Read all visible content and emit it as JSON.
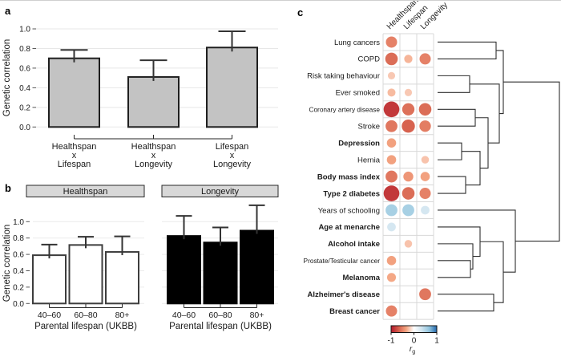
{
  "panel_labels": {
    "a": "a",
    "b": "b",
    "c": "c"
  },
  "chart_data": [
    {
      "id": "a",
      "type": "bar",
      "ylabel": "Genetic correlation",
      "ylim": [
        0,
        1
      ],
      "yticks": [
        0,
        0.2,
        0.4,
        0.6,
        0.8,
        1.0
      ],
      "categories": [
        [
          "Healthspan",
          "x",
          "Lifespan"
        ],
        [
          "Healthspan",
          "x",
          "Longevity"
        ],
        [
          "Lifespan",
          "x",
          "Longevity"
        ]
      ],
      "values": [
        0.7,
        0.51,
        0.81
      ],
      "errors_upper": [
        0.785,
        0.68,
        0.975
      ],
      "bar_color": "#c3c3c3",
      "bar_edge_color": "#1f1f1f",
      "grid": true
    },
    {
      "id": "b",
      "type": "bar",
      "ylabel": "Genetic correlation",
      "xlabel": "Parental lifespan (UKBB)",
      "ylim": [
        0,
        1
      ],
      "yticks": [
        0,
        0.2,
        0.4,
        0.6,
        0.8,
        1.0
      ],
      "categories": [
        "40–60",
        "60–80",
        "80+"
      ],
      "facets": [
        {
          "label": "Healthspan",
          "bar_color": "#ffffff",
          "bar_edge_color": "#3d3d3d",
          "values": [
            0.59,
            0.715,
            0.63
          ],
          "errors_upper": [
            0.72,
            0.815,
            0.82
          ]
        },
        {
          "label": "Longevity",
          "bar_color": "#000000",
          "bar_edge_color": "#000000",
          "values": [
            0.825,
            0.745,
            0.89
          ],
          "errors_upper": [
            1.07,
            0.93,
            1.2
          ]
        }
      ],
      "strip_fill": "#d8d8d8",
      "grid": true
    },
    {
      "id": "c",
      "type": "heatmap",
      "columns": [
        "Healthspan",
        "Lifespan",
        "Longevity"
      ],
      "rows": [
        {
          "label": "Lung cancers",
          "bold": false,
          "r": [
            -0.5,
            null,
            null
          ]
        },
        {
          "label": "COPD",
          "bold": false,
          "r": [
            -0.6,
            -0.27,
            -0.5
          ]
        },
        {
          "label": "Risk taking behaviour",
          "bold": false,
          "r": [
            -0.2,
            null,
            null
          ]
        },
        {
          "label": "Ever smoked",
          "bold": false,
          "r": [
            -0.25,
            -0.2,
            null
          ]
        },
        {
          "label": "Coronary artery disease",
          "bold": false,
          "small": true,
          "r": [
            -0.85,
            -0.58,
            -0.6
          ]
        },
        {
          "label": "Stroke",
          "bold": false,
          "r": [
            -0.55,
            -0.65,
            -0.52
          ]
        },
        {
          "label": "Depression",
          "bold": true,
          "r": [
            -0.35,
            null,
            null
          ]
        },
        {
          "label": "Hernia",
          "bold": false,
          "r": [
            -0.35,
            null,
            -0.22
          ]
        },
        {
          "label": "Body mass index",
          "bold": true,
          "r": [
            -0.55,
            -0.4,
            -0.35
          ]
        },
        {
          "label": "Type 2 diabetes",
          "bold": true,
          "r": [
            -0.85,
            -0.6,
            -0.5
          ]
        },
        {
          "label": "Years of schooling",
          "bold": false,
          "r": [
            0.55,
            0.55,
            0.3
          ]
        },
        {
          "label": "Age at menarche",
          "bold": true,
          "r": [
            0.3,
            null,
            null
          ]
        },
        {
          "label": "Alcohol intake",
          "bold": true,
          "r": [
            null,
            -0.22,
            null
          ]
        },
        {
          "label": "Prostate/Testicular cancer",
          "bold": false,
          "small": true,
          "r": [
            -0.35,
            null,
            null
          ]
        },
        {
          "label": "Melanoma",
          "bold": true,
          "r": [
            -0.32,
            null,
            null
          ]
        },
        {
          "label": "Alzheimer's disease",
          "bold": true,
          "r": [
            null,
            null,
            -0.55
          ]
        },
        {
          "label": "Breast cancer",
          "bold": true,
          "r": [
            -0.5,
            null,
            null
          ]
        }
      ],
      "colorbar": {
        "ticks": [
          "-1",
          "0",
          "1"
        ],
        "label_main": "r",
        "label_sub": "g",
        "stops": [
          "#b2182b",
          "#d6604d",
          "#f4a582",
          "#ffffff",
          "#d1e5f0",
          "#92c5de",
          "#2166ac"
        ]
      },
      "dendrogram": {
        "merges": [
          {
            "a": "L0",
            "b": "L1",
            "d": 73
          },
          {
            "a": "L2",
            "b": "L3",
            "d": 40
          },
          {
            "a": "L4",
            "b": "L5",
            "d": 47
          },
          {
            "a": "L6",
            "b": "L7",
            "d": 30
          },
          {
            "a": "L8",
            "b": "L9",
            "d": 35
          },
          {
            "a": "M3",
            "b": "M4",
            "d": 53
          },
          {
            "a": "M2",
            "b": "M5",
            "d": 63
          },
          {
            "a": "M1",
            "b": "M6",
            "d": 77
          },
          {
            "a": "M0",
            "b": "M7",
            "d": 82
          },
          {
            "a": "L13",
            "b": "L14",
            "d": 41
          },
          {
            "a": "L12",
            "b": "M9",
            "d": 44
          },
          {
            "a": "L11",
            "b": "M10",
            "d": 53
          },
          {
            "a": "L15",
            "b": "L16",
            "d": 70
          },
          {
            "a": "M11",
            "b": "M12",
            "d": 82
          },
          {
            "a": "L10",
            "b": "M13",
            "d": 97
          },
          {
            "a": "M8",
            "b": "M14",
            "d": 152
          }
        ]
      }
    }
  ]
}
